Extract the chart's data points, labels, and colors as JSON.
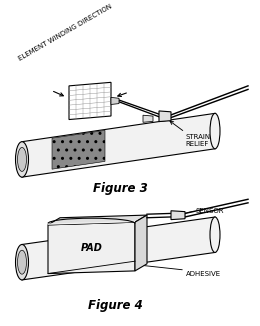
{
  "fig3_label": "Figure 3",
  "fig4_label": "Figure 4",
  "strain_relief_label": "STRAIN\nRELIEF",
  "element_winding_label": "ELEMENT WINDING DIRECTION",
  "sensor_label": "SENSOR",
  "adhesive_label": "ADHESIVE",
  "pad_label": "PAD",
  "bg_color": "#ffffff",
  "lc": "#000000",
  "gray_dark": "#888888",
  "gray_med": "#aaaaaa",
  "gray_light": "#cccccc",
  "gray_lighter": "#e0e0e0",
  "gray_bg": "#f0f0f0",
  "pipe_face": "#f2f2f2",
  "pipe_ell_face": "#e0e0e0",
  "sensor_gray": "#999999",
  "lw": 0.8
}
